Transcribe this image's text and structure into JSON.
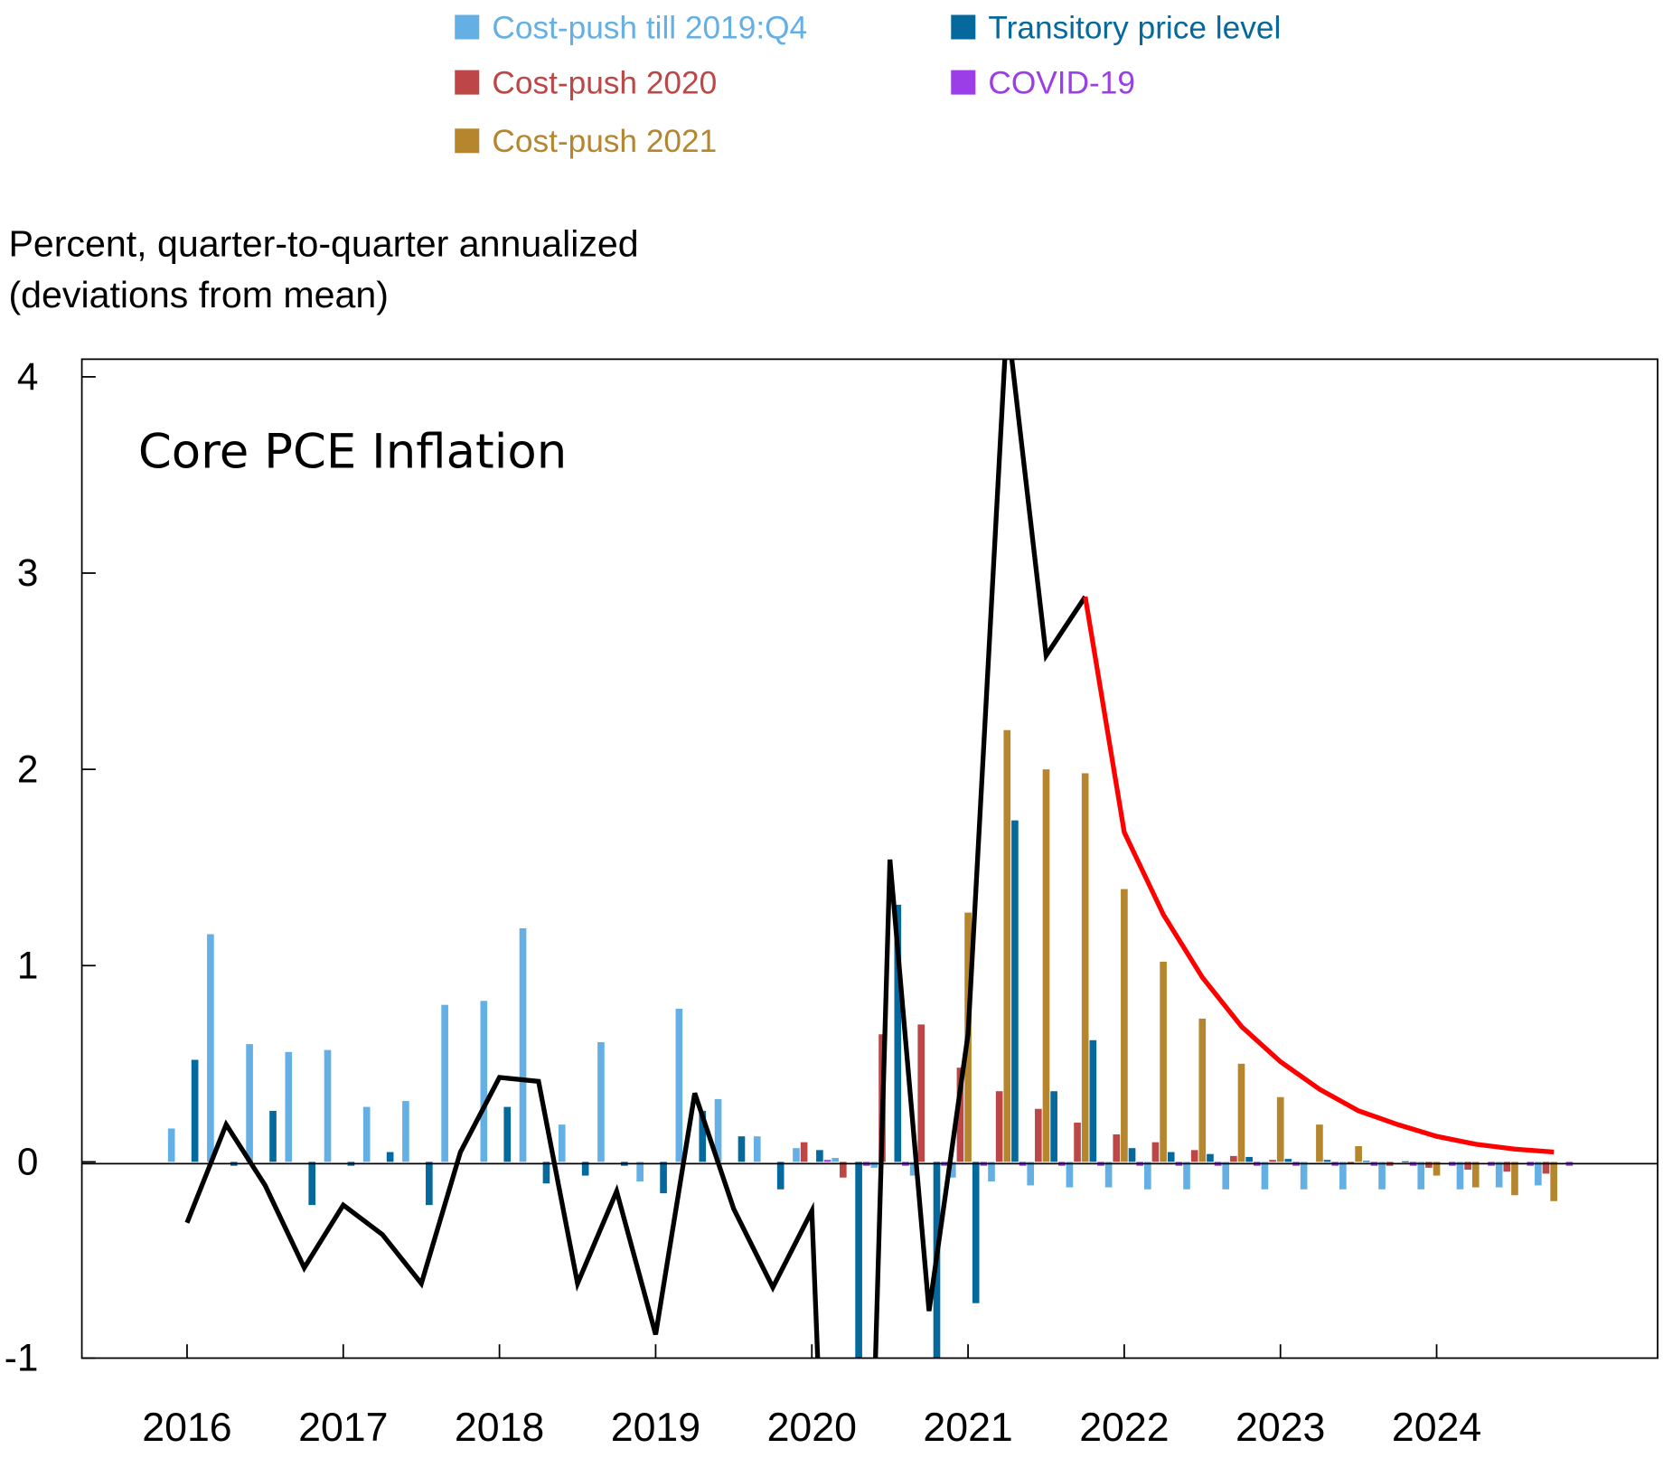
{
  "chart_data": {
    "type": "bar",
    "title": "Core PCE Inflation",
    "ylabel": [
      "Percent, quarter-to-quarter annualized",
      "(deviations from mean)"
    ],
    "xlabel": "",
    "ylim": [
      -1,
      4.09
    ],
    "yticks": [
      -1,
      0,
      1,
      2,
      3,
      4
    ],
    "xticks": [
      "2016",
      "2017",
      "2018",
      "2019",
      "2020",
      "2021",
      "2022",
      "2023",
      "2024"
    ],
    "legend_position": "top",
    "grid": false,
    "x": [
      "2016:Q1",
      "2016:Q2",
      "2016:Q3",
      "2016:Q4",
      "2017:Q1",
      "2017:Q2",
      "2017:Q3",
      "2017:Q4",
      "2018:Q1",
      "2018:Q2",
      "2018:Q3",
      "2018:Q4",
      "2019:Q1",
      "2019:Q2",
      "2019:Q3",
      "2019:Q4",
      "2020:Q1",
      "2020:Q2",
      "2020:Q3",
      "2020:Q4",
      "2021:Q1",
      "2021:Q2",
      "2021:Q3",
      "2021:Q4",
      "2022:Q1",
      "2022:Q2",
      "2022:Q3",
      "2022:Q4",
      "2023:Q1",
      "2023:Q2",
      "2023:Q3",
      "2023:Q4",
      "2024:Q1",
      "2024:Q2",
      "2024:Q3",
      "2024:Q4"
    ],
    "series": [
      {
        "name": "Cost-push till 2019:Q4",
        "kind": "bar",
        "color": "#64b0e4",
        "values": [
          0.17,
          1.16,
          0.6,
          0.56,
          0.57,
          0.28,
          0.31,
          0.8,
          0.82,
          1.19,
          0.19,
          0.61,
          -0.1,
          0.78,
          0.32,
          0.13,
          0.07,
          0.02,
          -0.03,
          -0.07,
          -0.08,
          -0.1,
          -0.12,
          -0.13,
          -0.13,
          -0.14,
          -0.14,
          -0.14,
          -0.14,
          -0.14,
          -0.14,
          -0.14,
          -0.14,
          -0.14,
          -0.13,
          -0.12
        ]
      },
      {
        "name": "Cost-push 2020",
        "kind": "bar",
        "color": "#bd4646",
        "values": [
          null,
          null,
          null,
          null,
          null,
          null,
          null,
          null,
          null,
          null,
          null,
          null,
          null,
          null,
          null,
          null,
          0.1,
          -0.08,
          0.65,
          0.7,
          0.48,
          0.36,
          0.27,
          0.2,
          0.14,
          0.1,
          0.06,
          0.03,
          0.01,
          0.0,
          -0.01,
          -0.02,
          -0.03,
          -0.04,
          -0.05,
          -0.06
        ]
      },
      {
        "name": "Cost-push 2021",
        "kind": "bar",
        "color": "#b5862e",
        "values": [
          null,
          null,
          null,
          null,
          null,
          null,
          null,
          null,
          null,
          null,
          null,
          null,
          null,
          null,
          null,
          null,
          null,
          null,
          null,
          null,
          1.27,
          2.2,
          2.0,
          1.98,
          1.39,
          1.02,
          0.73,
          0.5,
          0.33,
          0.19,
          0.08,
          0.0,
          -0.07,
          -0.13,
          -0.17,
          -0.2
        ]
      },
      {
        "name": "Transitory price level",
        "kind": "bar",
        "color": "#06699e",
        "values": [
          0.52,
          -0.02,
          0.26,
          -0.22,
          -0.02,
          0.05,
          -0.22,
          0.0,
          0.28,
          -0.11,
          -0.07,
          -0.02,
          -0.16,
          0.26,
          0.13,
          -0.14,
          0.06,
          -1.5,
          1.31,
          -1.5,
          -0.72,
          1.74,
          0.36,
          0.62,
          0.07,
          0.05,
          0.04,
          0.025,
          0.015,
          0.01,
          0.005,
          0.003,
          0.0,
          0.0,
          0.0,
          0.0
        ]
      },
      {
        "name": "COVID-19",
        "kind": "bar",
        "color": "#9c3ee8",
        "values": [
          null,
          null,
          null,
          null,
          null,
          null,
          null,
          null,
          null,
          null,
          null,
          null,
          null,
          null,
          null,
          null,
          0.01,
          -0.02,
          -0.02,
          -0.02,
          -0.02,
          -0.02,
          -0.02,
          -0.02,
          -0.02,
          -0.02,
          -0.02,
          -0.02,
          -0.02,
          -0.02,
          -0.02,
          -0.02,
          -0.02,
          -0.02,
          -0.02,
          -0.02
        ]
      },
      {
        "kind": "line",
        "color": "#000000",
        "values": [
          -0.31,
          0.19,
          -0.12,
          -0.54,
          -0.22,
          -0.37,
          -0.62,
          0.05,
          0.43,
          0.41,
          -0.62,
          -0.15,
          -0.88,
          0.35,
          -0.24,
          -0.64,
          -0.25,
          -5.3,
          1.54,
          -0.76,
          0.65,
          4.3,
          2.58,
          2.88,
          null,
          null,
          null,
          null,
          null,
          null,
          null,
          null,
          null,
          null,
          null,
          null
        ]
      },
      {
        "kind": "line",
        "color": "#ff0000",
        "values": [
          null,
          null,
          null,
          null,
          null,
          null,
          null,
          null,
          null,
          null,
          null,
          null,
          null,
          null,
          null,
          null,
          null,
          null,
          null,
          null,
          null,
          null,
          null,
          2.88,
          1.68,
          1.26,
          0.94,
          0.69,
          0.51,
          0.37,
          0.26,
          0.19,
          0.13,
          0.09,
          0.065,
          0.05
        ]
      }
    ]
  }
}
